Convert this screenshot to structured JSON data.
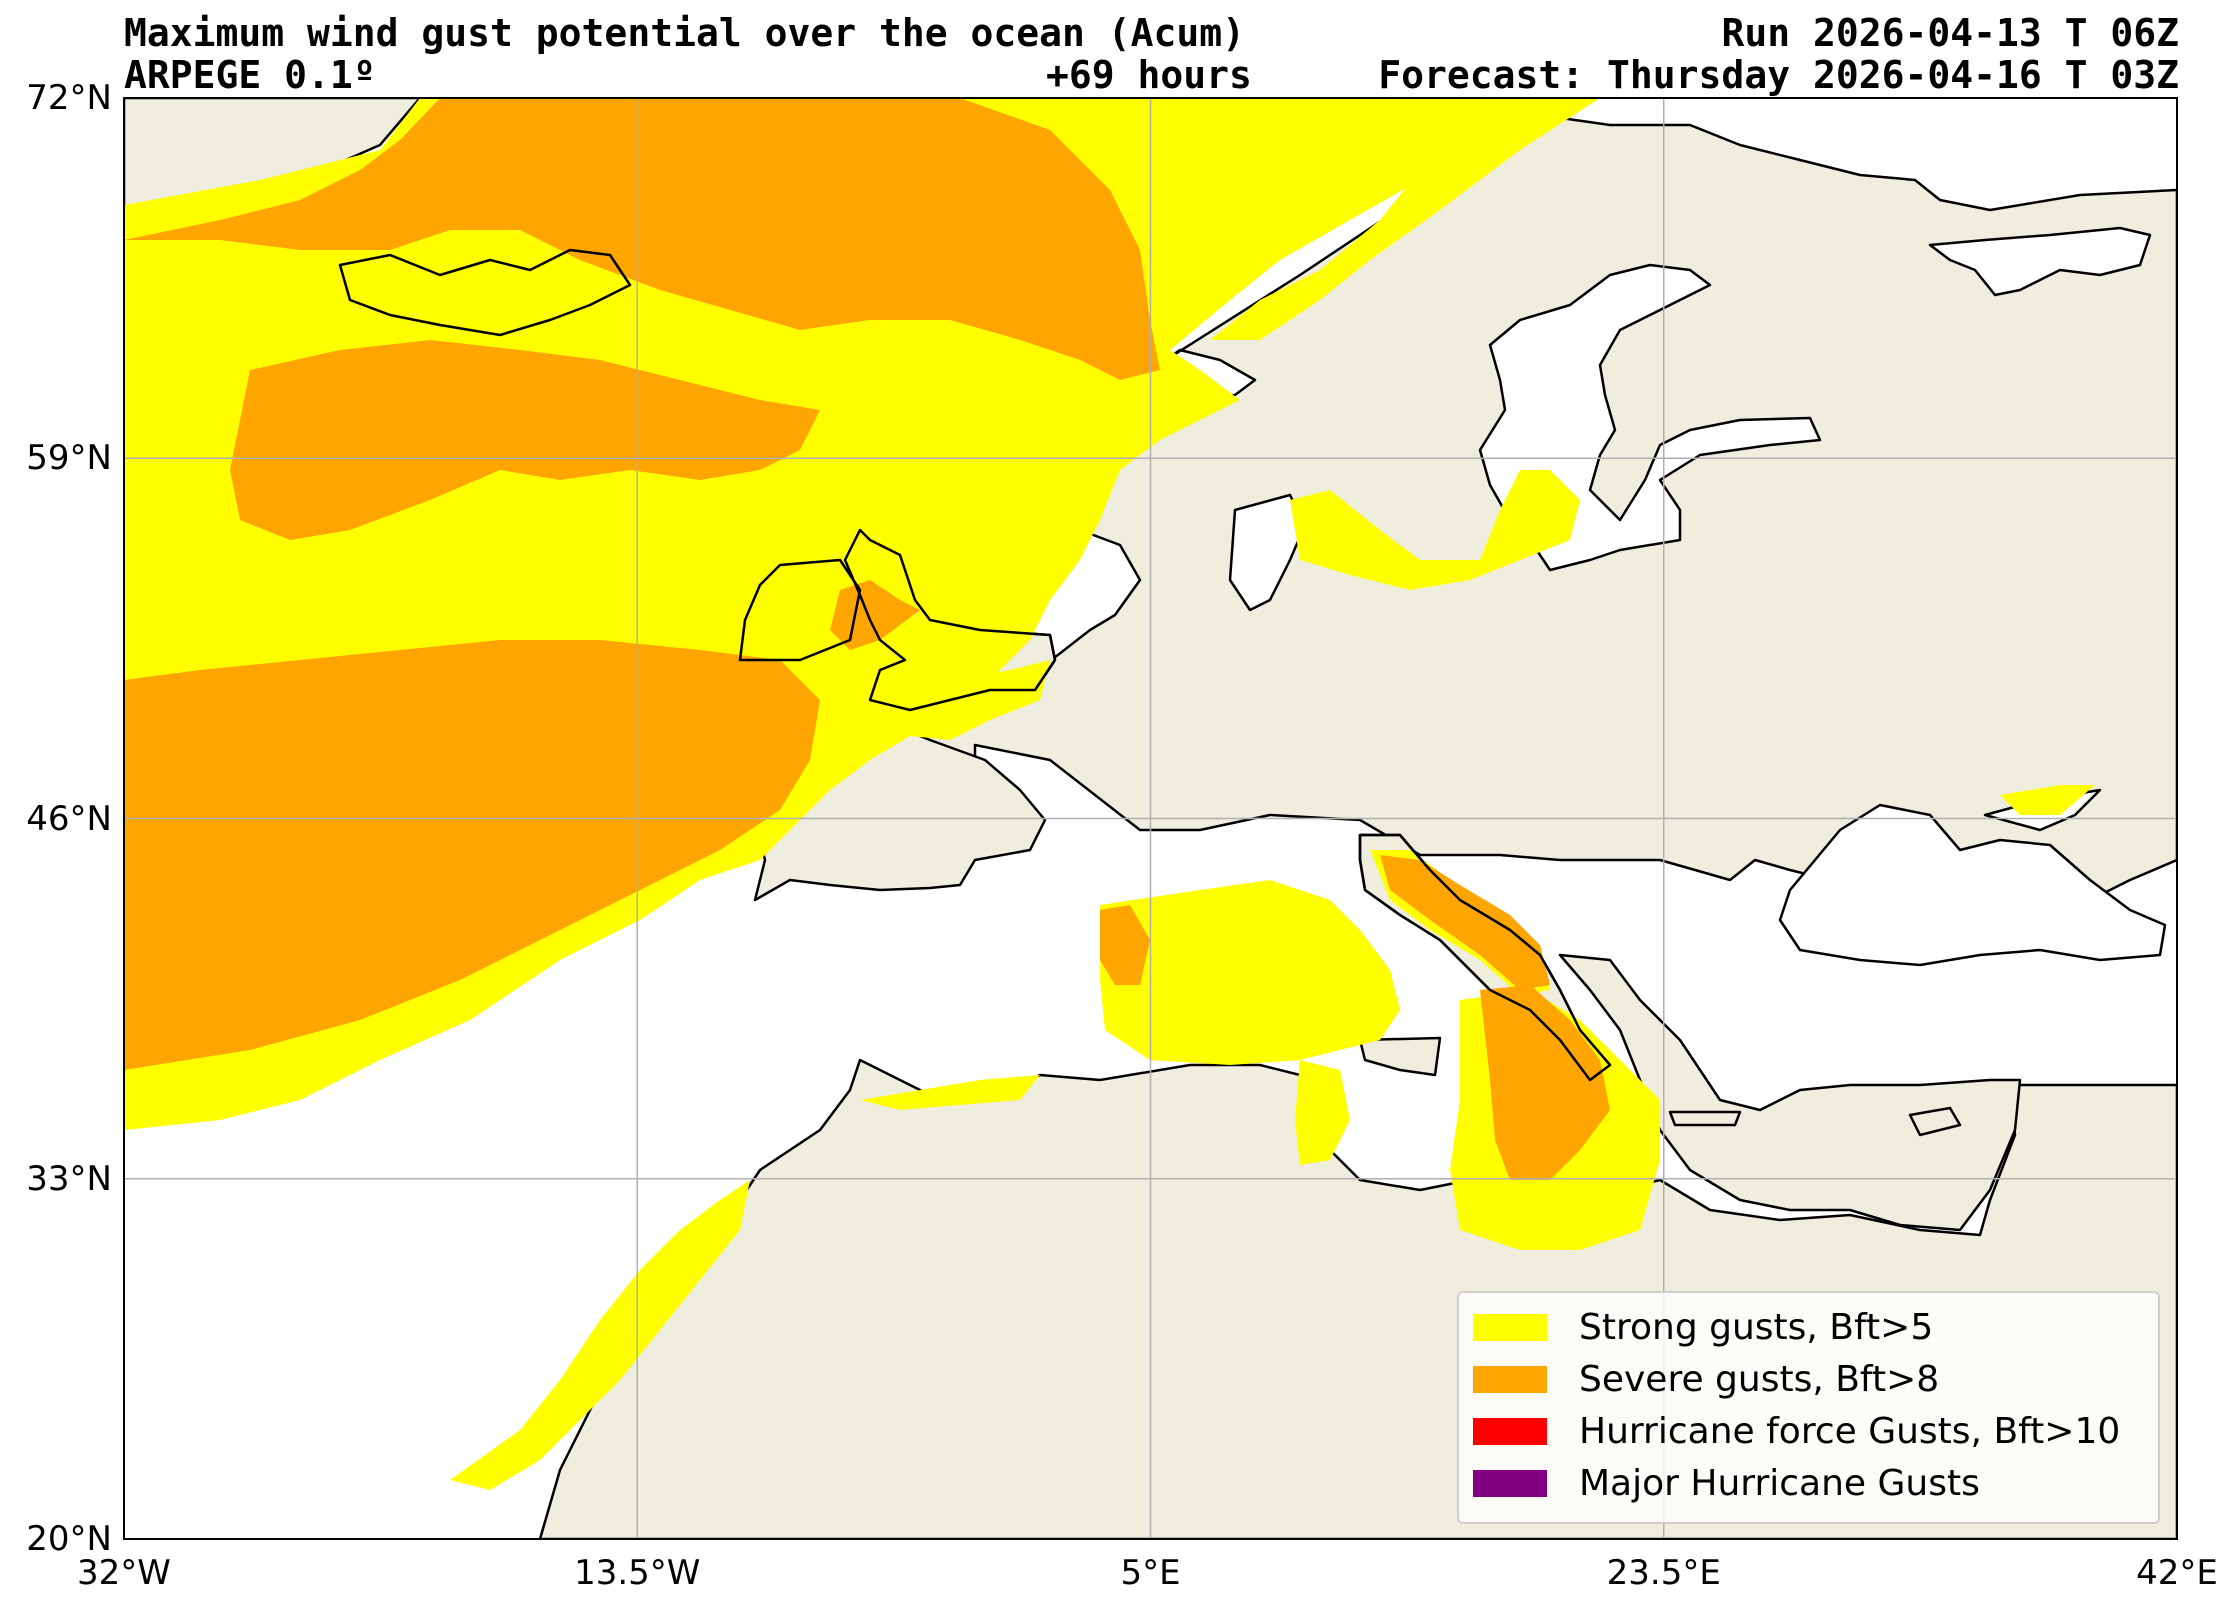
{
  "header": {
    "title": "Maximum wind gust potential over the ocean (Acum)",
    "model": "ARPEGE 0.1º",
    "lead_time": "+69 hours",
    "run": "Run 2026-04-13 T 06Z",
    "forecast": "Forecast: Thursday 2026-04-16 T 03Z"
  },
  "axes": {
    "lat_ticks": [
      "72°N",
      "59°N",
      "46°N",
      "33°N",
      "20°N"
    ],
    "lon_ticks": [
      "32°W",
      "13.5°W",
      "5°E",
      "23.5°E",
      "42°E"
    ],
    "lat_values": [
      72,
      59,
      46,
      33,
      20
    ],
    "lon_values": [
      -32,
      -13.5,
      5,
      23.5,
      42
    ],
    "extent": {
      "lon_min": -32,
      "lon_max": 42,
      "lat_min": 20,
      "lat_max": 72
    },
    "grid": true
  },
  "legend": {
    "placement": "bottom-right",
    "items": [
      {
        "label": "Strong gusts, Bft>5",
        "color": "#ffff00"
      },
      {
        "label": "Severe gusts, Bft>8",
        "color": "#ffa500"
      },
      {
        "label": "Hurricane force Gusts, Bft>10",
        "color": "#ff0000"
      },
      {
        "label": "Major Hurricane Gusts",
        "color": "#800080"
      }
    ]
  },
  "colors": {
    "land": "#efedde",
    "ocean": "#ffffff",
    "strong": "#ffff00",
    "severe": "#ffa500",
    "grid": "#b0b0b0"
  }
}
